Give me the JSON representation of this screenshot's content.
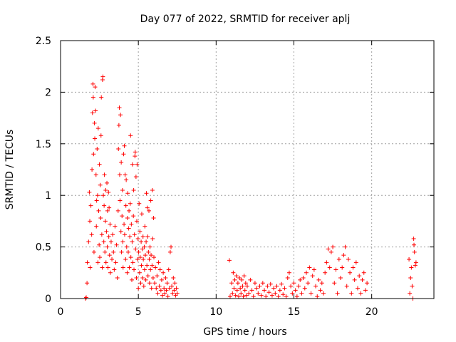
{
  "chart_data": {
    "type": "scatter",
    "title": "Day 077 of 2022, SRMTID for receiver aplj",
    "xlabel": "GPS time / hours",
    "ylabel": "SRMTID / TECUs",
    "xlim": [
      0,
      24
    ],
    "ylim": [
      0,
      2.5
    ],
    "xticks": [
      0,
      5,
      10,
      15,
      20
    ],
    "xtick_labels": [
      "0",
      "5",
      "10",
      "15",
      "20"
    ],
    "yticks": [
      0,
      0.5,
      1,
      1.5,
      2,
      2.5
    ],
    "ytick_labels": [
      "0",
      "0.5",
      "1",
      "1.5",
      "2",
      "2.5"
    ],
    "grid": true,
    "marker": "plus",
    "color": "#ff0000",
    "series": [
      {
        "name": "SRMTID",
        "points": [
          [
            1.6,
            0.0
          ],
          [
            1.65,
            0.01
          ],
          [
            1.7,
            0.15
          ],
          [
            1.72,
            0.35
          ],
          [
            1.8,
            0.55
          ],
          [
            1.85,
            1.03
          ],
          [
            1.88,
            0.75
          ],
          [
            1.9,
            0.3
          ],
          [
            1.95,
            0.9
          ],
          [
            2.0,
            0.62
          ],
          [
            2.02,
            1.25
          ],
          [
            2.05,
            1.8
          ],
          [
            2.08,
            2.08
          ],
          [
            2.1,
            1.95
          ],
          [
            2.12,
            1.4
          ],
          [
            2.15,
            0.45
          ],
          [
            2.18,
            1.7
          ],
          [
            2.2,
            1.55
          ],
          [
            2.22,
            2.05
          ],
          [
            2.25,
            1.82
          ],
          [
            2.28,
            1.2
          ],
          [
            2.3,
            0.7
          ],
          [
            2.32,
            0.95
          ],
          [
            2.35,
            1.45
          ],
          [
            2.38,
            1.0
          ],
          [
            2.4,
            0.35
          ],
          [
            2.42,
            1.65
          ],
          [
            2.45,
            0.85
          ],
          [
            2.48,
            0.52
          ],
          [
            2.5,
            1.3
          ],
          [
            2.52,
            0.4
          ],
          [
            2.55,
            1.1
          ],
          [
            2.58,
            0.78
          ],
          [
            2.6,
            1.58
          ],
          [
            2.62,
            1.95
          ],
          [
            2.65,
            0.62
          ],
          [
            2.68,
            0.3
          ],
          [
            2.7,
            2.12
          ],
          [
            2.72,
            2.15
          ],
          [
            2.75,
            1.0
          ],
          [
            2.78,
            0.55
          ],
          [
            2.8,
            0.9
          ],
          [
            2.82,
            1.2
          ],
          [
            2.85,
            0.45
          ],
          [
            2.88,
            0.75
          ],
          [
            2.9,
            1.05
          ],
          [
            2.92,
            0.35
          ],
          [
            2.95,
            0.65
          ],
          [
            2.98,
            1.12
          ],
          [
            3.0,
            0.5
          ],
          [
            3.02,
            0.85
          ],
          [
            3.05,
            0.3
          ],
          [
            3.08,
            1.03
          ],
          [
            3.1,
            0.6
          ],
          [
            3.12,
            0.88
          ],
          [
            3.15,
            0.42
          ],
          [
            3.18,
            0.72
          ],
          [
            3.2,
            0.25
          ],
          [
            3.25,
            0.55
          ],
          [
            3.3,
            0.38
          ],
          [
            3.35,
            0.62
          ],
          [
            3.4,
            0.45
          ],
          [
            3.45,
            0.28
          ],
          [
            3.5,
            0.7
          ],
          [
            3.55,
            0.35
          ],
          [
            3.6,
            0.52
          ],
          [
            3.65,
            0.2
          ],
          [
            3.7,
            0.85
          ],
          [
            3.72,
            1.45
          ],
          [
            3.75,
            1.68
          ],
          [
            3.78,
            1.85
          ],
          [
            3.8,
            1.2
          ],
          [
            3.82,
            0.95
          ],
          [
            3.85,
            1.78
          ],
          [
            3.88,
            0.65
          ],
          [
            3.9,
            1.32
          ],
          [
            3.92,
            0.45
          ],
          [
            3.95,
            0.8
          ],
          [
            3.98,
            1.05
          ],
          [
            4.0,
            0.55
          ],
          [
            4.02,
            0.3
          ],
          [
            4.05,
            1.4
          ],
          [
            4.08,
            0.72
          ],
          [
            4.1,
            1.48
          ],
          [
            4.12,
            0.62
          ],
          [
            4.15,
            1.2
          ],
          [
            4.18,
            0.38
          ],
          [
            4.2,
            0.9
          ],
          [
            4.22,
            1.15
          ],
          [
            4.25,
            0.5
          ],
          [
            4.28,
            0.25
          ],
          [
            4.3,
            0.78
          ],
          [
            4.32,
            1.02
          ],
          [
            4.35,
            0.45
          ],
          [
            4.38,
            0.68
          ],
          [
            4.4,
            0.85
          ],
          [
            4.42,
            0.3
          ],
          [
            4.45,
            0.6
          ],
          [
            4.48,
            0.92
          ],
          [
            4.5,
            1.58
          ],
          [
            4.52,
            0.4
          ],
          [
            4.55,
            0.72
          ],
          [
            4.58,
            0.18
          ],
          [
            4.6,
            0.55
          ],
          [
            4.62,
            1.3
          ],
          [
            4.65,
            0.35
          ],
          [
            4.68,
            0.8
          ],
          [
            4.7,
            1.05
          ],
          [
            4.72,
            0.28
          ],
          [
            4.75,
            0.62
          ],
          [
            4.78,
            1.38
          ],
          [
            4.8,
            1.42
          ],
          [
            4.82,
            0.48
          ],
          [
            4.85,
            1.18
          ],
          [
            4.88,
            0.2
          ],
          [
            4.9,
            0.75
          ],
          [
            4.92,
            1.3
          ],
          [
            4.95,
            0.38
          ],
          [
            4.98,
            0.58
          ],
          [
            5.0,
            0.1
          ],
          [
            5.02,
            0.45
          ],
          [
            5.05,
            0.92
          ],
          [
            5.08,
            0.25
          ],
          [
            5.1,
            0.65
          ],
          [
            5.12,
            0.4
          ],
          [
            5.15,
            0.15
          ],
          [
            5.18,
            0.55
          ],
          [
            5.2,
            0.32
          ],
          [
            5.22,
            0.82
          ],
          [
            5.25,
            0.48
          ],
          [
            5.28,
            0.2
          ],
          [
            5.3,
            0.6
          ],
          [
            5.32,
            0.38
          ],
          [
            5.35,
            0.12
          ],
          [
            5.38,
            0.5
          ],
          [
            5.4,
            0.28
          ],
          [
            5.42,
            0.7
          ],
          [
            5.45,
            0.42
          ],
          [
            5.48,
            0.18
          ],
          [
            5.5,
            0.55
          ],
          [
            5.52,
            1.02
          ],
          [
            5.55,
            0.32
          ],
          [
            5.58,
            0.88
          ],
          [
            5.6,
            0.6
          ],
          [
            5.62,
            0.22
          ],
          [
            5.65,
            0.45
          ],
          [
            5.68,
            0.85
          ],
          [
            5.7,
            0.38
          ],
          [
            5.72,
            0.15
          ],
          [
            5.75,
            0.5
          ],
          [
            5.78,
            0.28
          ],
          [
            5.8,
            0.95
          ],
          [
            5.82,
            0.42
          ],
          [
            5.85,
            0.1
          ],
          [
            5.88,
            0.32
          ],
          [
            5.9,
            1.05
          ],
          [
            5.92,
            0.58
          ],
          [
            5.95,
            0.2
          ],
          [
            5.98,
            0.78
          ],
          [
            6.0,
            0.4
          ],
          [
            6.05,
            0.15
          ],
          [
            6.1,
            0.3
          ],
          [
            6.15,
            0.1
          ],
          [
            6.2,
            0.22
          ],
          [
            6.25,
            0.05
          ],
          [
            6.3,
            0.35
          ],
          [
            6.35,
            0.12
          ],
          [
            6.4,
            0.28
          ],
          [
            6.45,
            0.08
          ],
          [
            6.5,
            0.18
          ],
          [
            6.55,
            0.03
          ],
          [
            6.6,
            0.25
          ],
          [
            6.65,
            0.1
          ],
          [
            6.7,
            0.05
          ],
          [
            6.75,
            0.2
          ],
          [
            6.8,
            0.08
          ],
          [
            6.85,
            0.15
          ],
          [
            6.9,
            0.02
          ],
          [
            6.95,
            0.28
          ],
          [
            7.0,
            0.1
          ],
          [
            7.05,
            0.45
          ],
          [
            7.1,
            0.5
          ],
          [
            7.15,
            0.12
          ],
          [
            7.2,
            0.05
          ],
          [
            7.25,
            0.2
          ],
          [
            7.3,
            0.08
          ],
          [
            7.35,
            0.15
          ],
          [
            7.4,
            0.03
          ],
          [
            7.45,
            0.1
          ],
          [
            7.5,
            0.05
          ],
          [
            10.85,
            0.37
          ],
          [
            10.9,
            0.02
          ],
          [
            11.0,
            0.15
          ],
          [
            11.05,
            0.05
          ],
          [
            11.1,
            0.25
          ],
          [
            11.15,
            0.1
          ],
          [
            11.2,
            0.18
          ],
          [
            11.25,
            0.03
          ],
          [
            11.3,
            0.22
          ],
          [
            11.35,
            0.08
          ],
          [
            11.4,
            0.15
          ],
          [
            11.45,
            0.02
          ],
          [
            11.5,
            0.2
          ],
          [
            11.55,
            0.1
          ],
          [
            11.6,
            0.05
          ],
          [
            11.65,
            0.18
          ],
          [
            11.7,
            0.12
          ],
          [
            11.75,
            0.02
          ],
          [
            11.8,
            0.22
          ],
          [
            11.85,
            0.08
          ],
          [
            11.9,
            0.15
          ],
          [
            11.95,
            0.03
          ],
          [
            12.0,
            0.12
          ],
          [
            12.1,
            0.05
          ],
          [
            12.2,
            0.18
          ],
          [
            12.3,
            0.08
          ],
          [
            12.4,
            0.02
          ],
          [
            12.5,
            0.15
          ],
          [
            12.6,
            0.1
          ],
          [
            12.7,
            0.05
          ],
          [
            12.8,
            0.12
          ],
          [
            12.9,
            0.03
          ],
          [
            13.0,
            0.15
          ],
          [
            13.1,
            0.08
          ],
          [
            13.2,
            0.02
          ],
          [
            13.3,
            0.12
          ],
          [
            13.4,
            0.06
          ],
          [
            13.5,
            0.14
          ],
          [
            13.6,
            0.03
          ],
          [
            13.7,
            0.1
          ],
          [
            13.8,
            0.05
          ],
          [
            13.9,
            0.12
          ],
          [
            14.0,
            0.02
          ],
          [
            14.1,
            0.08
          ],
          [
            14.2,
            0.14
          ],
          [
            14.3,
            0.04
          ],
          [
            14.4,
            0.1
          ],
          [
            14.5,
            0.02
          ],
          [
            14.6,
            0.2
          ],
          [
            14.7,
            0.25
          ],
          [
            14.8,
            0.12
          ],
          [
            14.9,
            0.05
          ],
          [
            15.0,
            0.15
          ],
          [
            15.1,
            0.08
          ],
          [
            15.2,
            0.02
          ],
          [
            15.3,
            0.12
          ],
          [
            15.4,
            0.18
          ],
          [
            15.5,
            0.05
          ],
          [
            15.6,
            0.2
          ],
          [
            15.7,
            0.1
          ],
          [
            15.8,
            0.25
          ],
          [
            15.9,
            0.15
          ],
          [
            16.0,
            0.3
          ],
          [
            16.1,
            0.05
          ],
          [
            16.2,
            0.22
          ],
          [
            16.3,
            0.28
          ],
          [
            16.4,
            0.12
          ],
          [
            16.5,
            0.02
          ],
          [
            16.6,
            0.18
          ],
          [
            16.7,
            0.08
          ],
          [
            16.8,
            0.15
          ],
          [
            16.9,
            0.05
          ],
          [
            17.0,
            0.25
          ],
          [
            17.1,
            0.35
          ],
          [
            17.2,
            0.48
          ],
          [
            17.3,
            0.3
          ],
          [
            17.4,
            0.45
          ],
          [
            17.5,
            0.5
          ],
          [
            17.6,
            0.15
          ],
          [
            17.7,
            0.28
          ],
          [
            17.8,
            0.05
          ],
          [
            17.9,
            0.38
          ],
          [
            18.0,
            0.2
          ],
          [
            18.1,
            0.3
          ],
          [
            18.2,
            0.42
          ],
          [
            18.3,
            0.5
          ],
          [
            18.4,
            0.12
          ],
          [
            18.5,
            0.38
          ],
          [
            18.6,
            0.25
          ],
          [
            18.7,
            0.05
          ],
          [
            18.8,
            0.3
          ],
          [
            18.9,
            0.18
          ],
          [
            19.0,
            0.35
          ],
          [
            19.1,
            0.1
          ],
          [
            19.2,
            0.22
          ],
          [
            19.3,
            0.05
          ],
          [
            19.4,
            0.18
          ],
          [
            19.5,
            0.25
          ],
          [
            19.6,
            0.08
          ],
          [
            19.7,
            0.15
          ],
          [
            22.4,
            0.38
          ],
          [
            22.45,
            0.05
          ],
          [
            22.5,
            0.2
          ],
          [
            22.55,
            0.3
          ],
          [
            22.6,
            0.12
          ],
          [
            22.65,
            0.0
          ],
          [
            22.7,
            0.58
          ],
          [
            22.72,
            0.52
          ],
          [
            22.75,
            0.45
          ],
          [
            22.8,
            0.32
          ],
          [
            22.85,
            0.35
          ]
        ]
      }
    ]
  }
}
